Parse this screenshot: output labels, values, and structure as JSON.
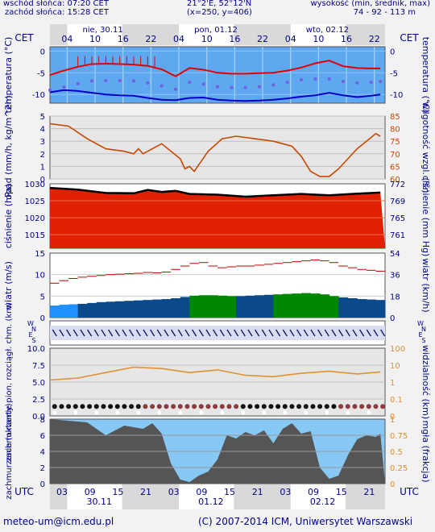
{
  "header": {
    "sunrise": "wschód słońca: 07:20 CET",
    "sunset": "zachód słońca: 15:28 CET",
    "coords": "21°2'E, 52°12'N",
    "grid": "(x=250, y=406)",
    "elev_label": "wysokość (min, średnik, max)",
    "elev_values": "74 - 92 - 113 m"
  },
  "footer": {
    "email": "meteo-um@icm.edu.pl",
    "copyright": "(C) 2007-2014 ICM, Uniwersytet Warszawski"
  },
  "time_axis": {
    "tz_top": "CET",
    "tz_bottom": "UTC",
    "days_top": [
      "nie, 30.11",
      "pon, 01.12",
      "wto, 02.12"
    ],
    "days_bottom": [
      "30.11",
      "01.12",
      "02.12"
    ],
    "hours_top": [
      "04",
      "10",
      "16",
      "22",
      "04",
      "10",
      "16",
      "22",
      "04",
      "10",
      "16",
      "22"
    ],
    "hours_bottom": [
      "03",
      "09",
      "15",
      "21",
      "03",
      "09",
      "15",
      "21",
      "03",
      "09",
      "15",
      "21"
    ]
  },
  "colors": {
    "temp_bg": "#5ea8f0",
    "temp_line": "#e00000",
    "dew_line": "#0000c8",
    "feel_dots": "#7060e0",
    "humidity": "#c84800",
    "pressure_fill": "#e02000",
    "wind_gust": "#c00000",
    "wind_light": "#1e90ff",
    "wind_blue": "#0a4a8a",
    "wind_green": "#008800",
    "visibility": "#e09030",
    "cloud_sky": "#87c8f5",
    "cloud_dark": "#555555"
  },
  "chart_data": [
    {
      "type": "line",
      "ylabel_left": "temperatura (°C)",
      "ylabel_right": "temperatura (°C)",
      "yticks_left": [
        "0",
        "-5",
        "-10"
      ],
      "yticks_right": [
        "0",
        "-5",
        "-10"
      ],
      "ylim": [
        -12,
        1
      ],
      "x_hours": [
        0,
        3,
        6,
        9,
        12,
        15,
        18,
        21,
        24,
        27,
        30,
        33,
        36,
        39,
        42,
        45,
        48,
        51,
        54,
        57,
        60,
        63,
        66,
        69,
        71
      ],
      "series": [
        {
          "values": [
            -5.5,
            -4.5,
            -3.6,
            -3.0,
            -2.9,
            -3.0,
            -3.1,
            -3.4,
            -4.2,
            -5.8,
            -3.9,
            -4.3,
            -5.0,
            -5.2,
            -5.2,
            -5.1,
            -5.0,
            -4.5,
            -3.8,
            -2.8,
            -2.2,
            -3.5,
            -3.9,
            -4.0,
            -4.0
          ]
        },
        {
          "values": [
            -9.0,
            -8.3,
            -7.5,
            -6.9,
            -6.8,
            -6.8,
            -6.9,
            -7.3,
            -8.0,
            -8.8,
            -7.2,
            -7.6,
            -8.2,
            -8.4,
            -8.4,
            -8.2,
            -7.8,
            -7.2,
            -6.6,
            -6.4,
            -6.4,
            -7.0,
            -7.3,
            -7.2,
            -7.0
          ]
        },
        {
          "values": [
            -9.5,
            -9.0,
            -9.2,
            -9.6,
            -10.0,
            -10.2,
            -10.3,
            -10.8,
            -11.2,
            -11.3,
            -10.8,
            -10.7,
            -11.2,
            -11.4,
            -11.5,
            -11.4,
            -11.2,
            -10.9,
            -10.5,
            -10.2,
            -9.6,
            -10.2,
            -10.6,
            -10.3,
            -10.0
          ]
        }
      ]
    },
    {
      "type": "line",
      "ylabel_left": "opad (mm/h, kg/m^2h)",
      "ylabel_right": "wilgotność wzgl. (%)",
      "yticks_left": [
        "5",
        "4",
        "3",
        "2",
        "1",
        "0"
      ],
      "yticks_right": [
        "85",
        "80",
        "75",
        "70",
        "65",
        "60"
      ],
      "ylim_right": [
        60,
        85
      ],
      "x_hours": [
        0,
        4,
        8,
        12,
        16,
        18,
        19,
        20,
        24,
        28,
        29,
        30,
        31,
        34,
        37,
        40,
        44,
        48,
        52,
        54,
        56,
        58,
        60,
        62,
        64,
        66,
        68,
        70,
        71
      ],
      "series": [
        {
          "values": [
            82,
            81,
            76,
            72,
            71,
            70,
            72,
            70,
            74,
            68,
            64,
            65,
            63,
            71,
            76,
            77,
            76,
            75,
            73,
            69,
            63,
            61,
            61,
            64,
            68,
            72,
            75,
            78,
            77
          ]
        }
      ]
    },
    {
      "type": "area",
      "ylabel_left": "ciśnienie (hPa)",
      "ylabel_right": "ciśnienie (mm Hg)",
      "yticks_left": [
        "1030",
        "1025",
        "1020",
        "1015"
      ],
      "yticks_right": [
        "772",
        "769",
        "765",
        "761"
      ],
      "ylim": [
        1011,
        1030
      ],
      "x_hours": [
        0,
        6,
        12,
        18,
        21,
        24,
        27,
        30,
        36,
        42,
        48,
        54,
        60,
        66,
        71
      ],
      "series": [
        {
          "values": [
            1028.8,
            1028.3,
            1027.3,
            1027.2,
            1028.2,
            1027.6,
            1027.9,
            1027.0,
            1026.8,
            1026.2,
            1026.6,
            1027.0,
            1026.6,
            1027.1,
            1027.4
          ]
        }
      ]
    },
    {
      "type": "bar",
      "ylabel_left": "wiatr (m/s)",
      "ylabel_right": "wiatr (km/h)",
      "yticks_left": [
        "15",
        "10",
        "5",
        "0"
      ],
      "yticks_right": [
        "54",
        "36",
        "18",
        "0"
      ],
      "ylim": [
        0,
        15
      ],
      "x_hours": [
        0,
        2,
        4,
        6,
        8,
        10,
        12,
        14,
        16,
        18,
        20,
        22,
        24,
        26,
        28,
        30,
        32,
        34,
        36,
        38,
        40,
        42,
        44,
        46,
        48,
        50,
        52,
        54,
        56,
        58,
        60,
        62,
        64,
        66,
        68,
        70
      ],
      "series": [
        {
          "values": [
            8.0,
            8.6,
            9.1,
            9.4,
            9.6,
            9.8,
            10.0,
            10.1,
            10.2,
            10.3,
            10.5,
            10.4,
            10.6,
            11.2,
            12.0,
            12.6,
            12.8,
            12.0,
            11.6,
            11.8,
            12.0,
            12.0,
            12.2,
            12.4,
            12.6,
            12.8,
            13.0,
            13.2,
            13.4,
            13.2,
            12.8,
            12.0,
            11.6,
            11.2,
            11.0,
            10.8
          ]
        },
        {
          "values": [
            2.8,
            3.0,
            3.1,
            3.2,
            3.4,
            3.6,
            3.7,
            3.8,
            3.9,
            4.0,
            4.1,
            4.2,
            4.3,
            4.5,
            4.8,
            5.1,
            5.2,
            5.2,
            5.1,
            5.0,
            5.0,
            5.1,
            5.2,
            5.3,
            5.4,
            5.5,
            5.6,
            5.7,
            5.6,
            5.4,
            5.0,
            4.7,
            4.5,
            4.3,
            4.2,
            4.1
          ]
        }
      ]
    },
    {
      "type": "scatter",
      "ylabel_left": "zachmurzenie pion. rozciągł. chm. (km)",
      "ylabel_right": "widzialność (km)",
      "yticks_left": [
        "10.0",
        "7.5",
        "5.0",
        "2.5",
        "0.0"
      ],
      "yticks_right": [
        "100",
        "10",
        "1",
        "0.1",
        "0"
      ],
      "x_hours": [
        0,
        6,
        12,
        18,
        24,
        30,
        36,
        42,
        48,
        54,
        60,
        66,
        71
      ],
      "series": [
        {
          "values": [
            5.3,
            5.6,
            6.4,
            7.2,
            7.0,
            6.4,
            6.8,
            6.0,
            5.8,
            6.3,
            6.6,
            6.2,
            6.5
          ]
        }
      ]
    },
    {
      "type": "area",
      "ylabel_left": "zachmurzenie (oktanty)",
      "ylabel_right": "mgła (frakcja)",
      "yticks_left": [
        "8",
        "6",
        "4",
        "2",
        "0"
      ],
      "yticks_right": [
        "1",
        "0.75",
        "0.5",
        "0.25",
        "0"
      ],
      "ylim": [
        0,
        8
      ],
      "x_hours": [
        0,
        4,
        8,
        12,
        16,
        20,
        22,
        24,
        26,
        28,
        30,
        32,
        34,
        36,
        38,
        40,
        42,
        44,
        46,
        48,
        50,
        52,
        54,
        56,
        58,
        60,
        62,
        64,
        66,
        68,
        70,
        71
      ],
      "series": [
        {
          "values": [
            8.0,
            7.8,
            7.6,
            6.0,
            7.2,
            6.8,
            7.5,
            6.2,
            2.5,
            0.5,
            0.2,
            1.0,
            1.5,
            3.0,
            6.0,
            5.6,
            6.4,
            6.0,
            6.6,
            5.0,
            6.8,
            7.5,
            6.2,
            6.5,
            2.0,
            0.6,
            1.0,
            3.5,
            5.5,
            6.0,
            5.8,
            6.2
          ]
        }
      ]
    }
  ]
}
